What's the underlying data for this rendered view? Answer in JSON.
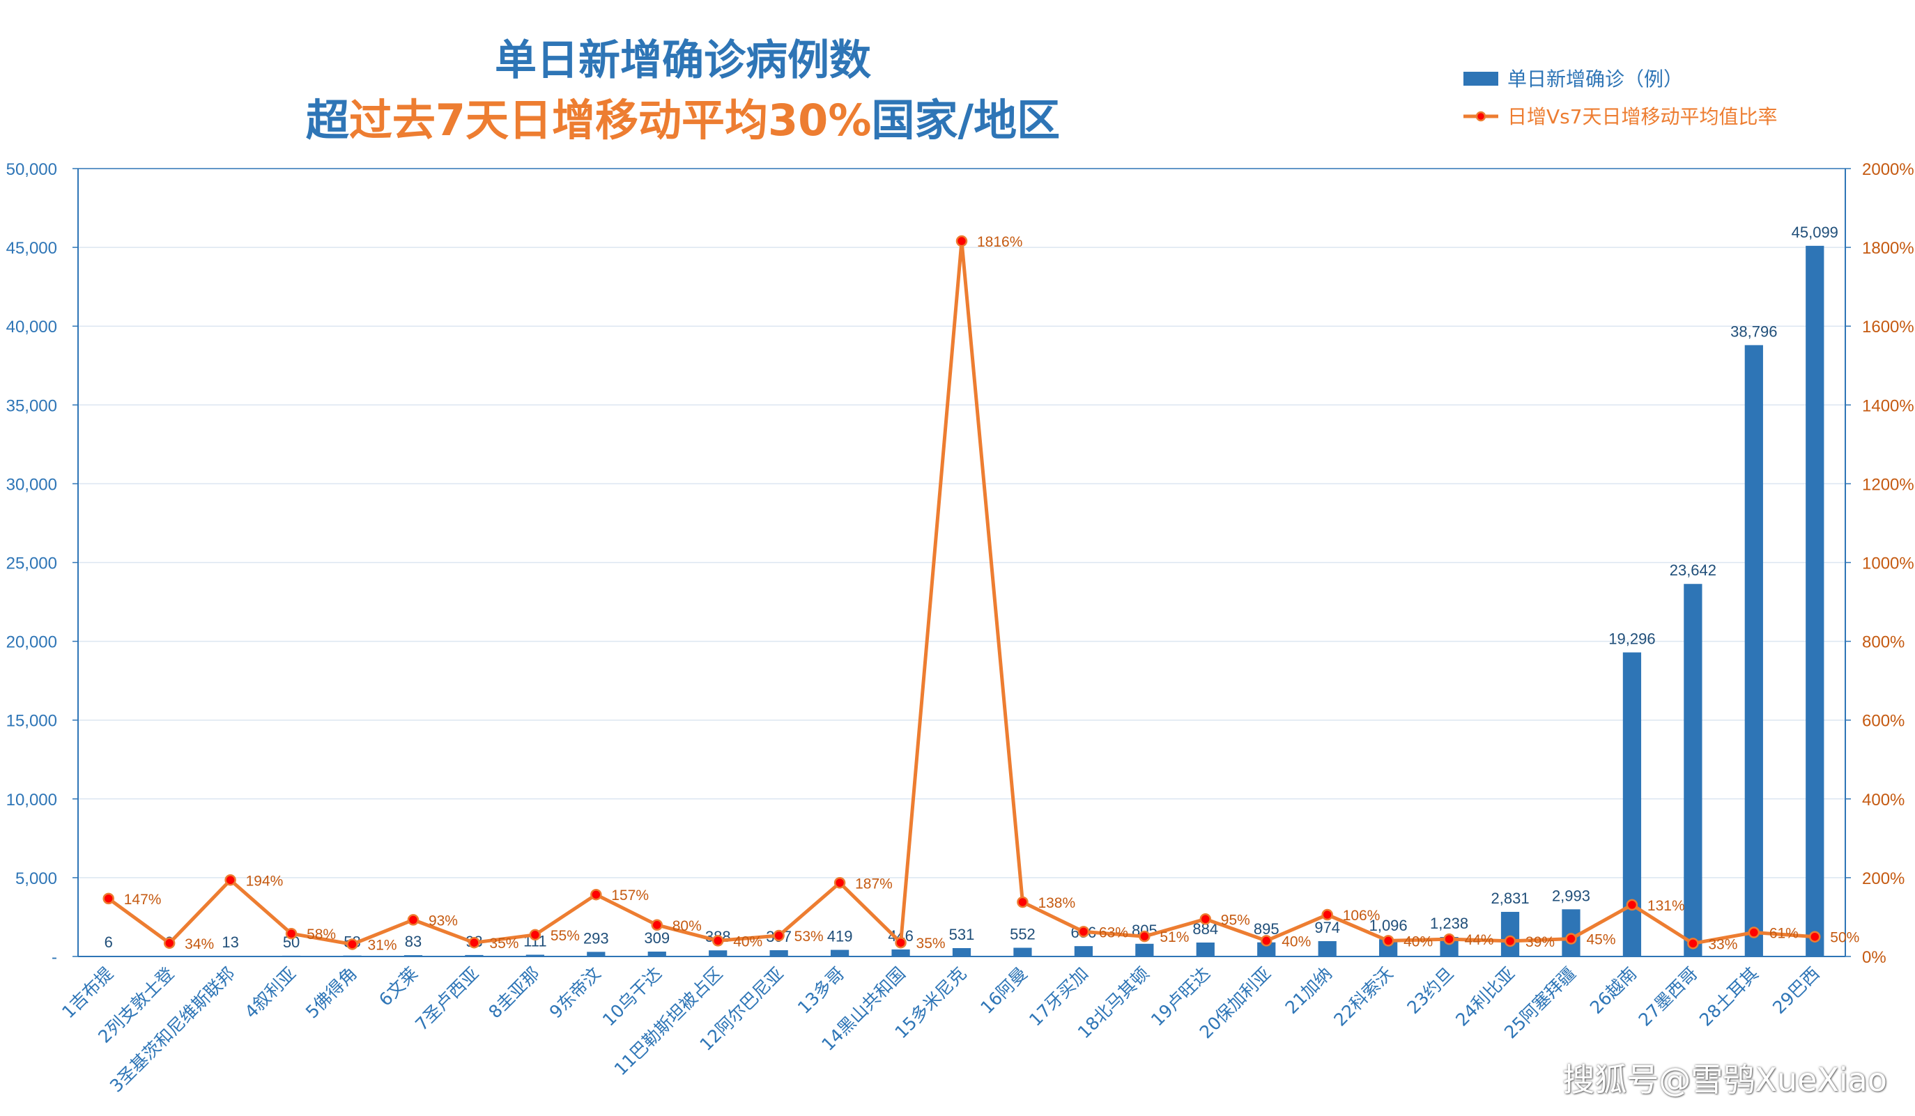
{
  "title": {
    "line1": "单日新增确诊病例数",
    "line2_a": "超",
    "line2_b": "过去7天日增移动平均30%",
    "line2_c": "国家/地区"
  },
  "watermark": "搜狐号@雪鸮XueXiao",
  "colors": {
    "bar": "#2e75b6",
    "line": "#ed7d31",
    "marker": "#ff0000",
    "axis_left": "#2e75b6",
    "axis_right": "#c55a11",
    "grid": "#dce6f1"
  },
  "chart_data": {
    "type": "bar",
    "categories": [
      "1吉布提",
      "2列支敦士登",
      "3圣基茨和尼维斯联邦",
      "4叙利亚",
      "5佛得角",
      "6文莱",
      "7圣卢西亚",
      "8圭亚那",
      "9东帝汶",
      "10乌干达",
      "11巴勒斯坦被占区",
      "12阿尔巴尼亚",
      "13多哥",
      "14黑山共和国",
      "15多米尼克",
      "16阿曼",
      "17牙买加",
      "18北马其顿",
      "19卢旺达",
      "20保加利亚",
      "21加纳",
      "22科索沃",
      "23约旦",
      "24利比亚",
      "25阿塞拜疆",
      "26越南",
      "27墨西哥",
      "28土耳其",
      "29巴西"
    ],
    "series": [
      {
        "name": "单日新增确诊（例）",
        "axis": "left",
        "kind": "bar",
        "values": [
          6,
          9,
          13,
          50,
          58,
          83,
          93,
          111,
          293,
          309,
          388,
          397,
          419,
          446,
          531,
          552,
          656,
          805,
          884,
          895,
          974,
          1096,
          1238,
          2831,
          2993,
          19296,
          23642,
          38796,
          45099
        ],
        "labels": [
          "6",
          "9",
          "13",
          "50",
          "58",
          "83",
          "93",
          "111",
          "293",
          "309",
          "388",
          "397",
          "419",
          "446",
          "531",
          "552",
          "656",
          "805",
          "884",
          "895",
          "974",
          "1,096",
          "1,238",
          "2,831",
          "2,993",
          "19,296",
          "23,642",
          "38,796",
          "45,099"
        ]
      },
      {
        "name": "日增Vs7天日增移动平均值比率",
        "axis": "right",
        "kind": "line",
        "values": [
          147,
          34,
          194,
          58,
          31,
          93,
          35,
          55,
          157,
          80,
          40,
          53,
          187,
          35,
          1816,
          138,
          63,
          51,
          95,
          40,
          106,
          40,
          44,
          39,
          45,
          131,
          33,
          61,
          50
        ],
        "labels": [
          "147%",
          "34%",
          "194%",
          "58%",
          "31%",
          "93%",
          "35%",
          "55%",
          "157%",
          "80%",
          "40%",
          "53%",
          "187%",
          "35%",
          "1816%",
          "138%",
          "63%",
          "51%",
          "95%",
          "40%",
          "106%",
          "40%",
          "44%",
          "39%",
          "45%",
          "131%",
          "33%",
          "61%",
          "50%"
        ]
      }
    ],
    "y_left": {
      "range": [
        0,
        50000
      ],
      "ticks": [
        "-",
        "5,000",
        "10,000",
        "15,000",
        "20,000",
        "25,000",
        "30,000",
        "35,000",
        "40,000",
        "45,000",
        "50,000"
      ]
    },
    "y_right": {
      "range": [
        0,
        2000
      ],
      "ticks": [
        "0%",
        "200%",
        "400%",
        "600%",
        "800%",
        "1000%",
        "1200%",
        "1400%",
        "1600%",
        "1800%",
        "2000%"
      ]
    },
    "grid": true,
    "legend_position": "top-right"
  }
}
